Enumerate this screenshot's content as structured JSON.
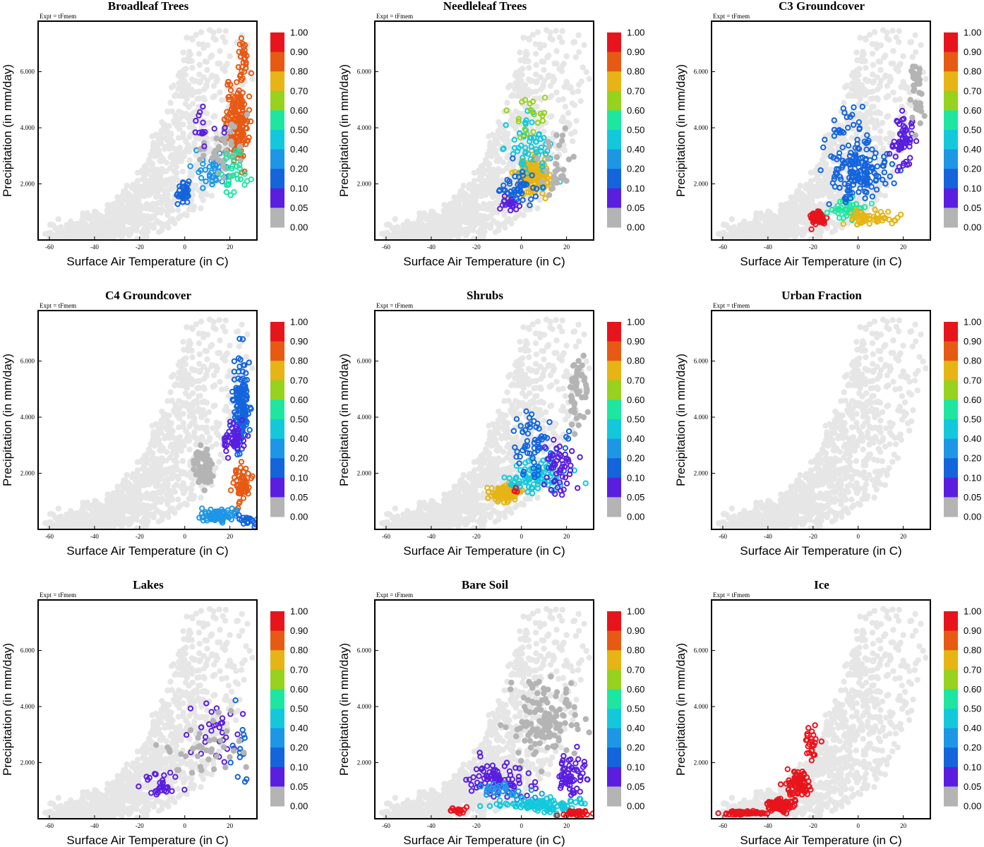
{
  "figure": {
    "expt_label": "Expt = tFmem",
    "colorbar": {
      "labels": [
        "1.00",
        "0.90",
        "0.80",
        "0.70",
        "0.60",
        "0.50",
        "0.40",
        "0.20",
        "0.10",
        "0.05",
        "0.00"
      ],
      "colors": [
        "#e8141c",
        "#e65a14",
        "#e6b414",
        "#96d21e",
        "#1ee6a0",
        "#14c8dc",
        "#1e96e6",
        "#1464dc",
        "#5a1ee0",
        "#b4b4b4"
      ]
    },
    "background_color": "#e6e6e6"
  },
  "chart_data": [
    {
      "type": "scatter",
      "title": "Broadleaf Trees",
      "xlabel": "Surface Air Temperature (in C)",
      "ylabel": "Precipitation (in mm/day)",
      "xlim": [
        -65,
        32
      ],
      "ylim": [
        0,
        7800
      ],
      "xticks": [
        -60,
        -40,
        -20,
        0,
        20
      ],
      "yticks": [
        2000,
        4000,
        6000
      ],
      "ytick_labels": [
        "2.000",
        "4.000",
        "6.000"
      ],
      "colorbar_levels": [
        0,
        0.05,
        0.1,
        0.2,
        0.4,
        0.5,
        0.6,
        0.7,
        0.8,
        0.9,
        1.0
      ],
      "clusters": [
        {
          "center": [
            23,
            4200
          ],
          "spread": [
            4,
            1200
          ],
          "n": 170,
          "value": 0.85
        },
        {
          "center": [
            26,
            6500
          ],
          "spread": [
            2,
            700
          ],
          "n": 25,
          "value": 0.82
        },
        {
          "center": [
            0,
            1700
          ],
          "spread": [
            3,
            300
          ],
          "n": 35,
          "value": 0.12
        },
        {
          "center": [
            12,
            2500
          ],
          "spread": [
            6,
            600
          ],
          "n": 40,
          "value": 0.2
        },
        {
          "center": [
            18,
            3200
          ],
          "spread": [
            8,
            900
          ],
          "n": 40,
          "value": 0.0
        },
        {
          "center": [
            22,
            2600
          ],
          "spread": [
            6,
            800
          ],
          "n": 30,
          "value": 0.55
        },
        {
          "center": [
            10,
            4000
          ],
          "spread": [
            8,
            600
          ],
          "n": 15,
          "value": 0.08
        }
      ]
    },
    {
      "type": "scatter",
      "title": "Needleleaf Trees",
      "xlabel": "Surface Air Temperature (in C)",
      "ylabel": "Precipitation (in mm/day)",
      "xlim": [
        -65,
        32
      ],
      "ylim": [
        0,
        7800
      ],
      "xticks": [
        -60,
        -40,
        -20,
        0,
        20
      ],
      "yticks": [
        2000,
        4000,
        6000
      ],
      "ytick_labels": [
        "2.000",
        "4.000",
        "6.000"
      ],
      "colorbar_levels": [
        0,
        0.05,
        0.1,
        0.2,
        0.4,
        0.5,
        0.6,
        0.7,
        0.8,
        0.9,
        1.0
      ],
      "clusters": [
        {
          "center": [
            5,
            2300
          ],
          "spread": [
            6,
            500
          ],
          "n": 150,
          "value": 0.72
        },
        {
          "center": [
            3,
            3200
          ],
          "spread": [
            8,
            900
          ],
          "n": 60,
          "value": 0.4
        },
        {
          "center": [
            -2,
            1800
          ],
          "spread": [
            7,
            500
          ],
          "n": 50,
          "value": 0.15
        },
        {
          "center": [
            5,
            4400
          ],
          "spread": [
            7,
            600
          ],
          "n": 20,
          "value": 0.6
        },
        {
          "center": [
            15,
            2800
          ],
          "spread": [
            6,
            900
          ],
          "n": 30,
          "value": 0.0
        },
        {
          "center": [
            -5,
            1300
          ],
          "spread": [
            4,
            200
          ],
          "n": 20,
          "value": 0.06
        }
      ]
    },
    {
      "type": "scatter",
      "title": "C3 Groundcover",
      "xlabel": "Surface Air Temperature (in C)",
      "ylabel": "Precipitation (in mm/day)",
      "xlim": [
        -65,
        32
      ],
      "ylim": [
        0,
        7800
      ],
      "xticks": [
        -60,
        -40,
        -20,
        0,
        20
      ],
      "yticks": [
        2000,
        4000,
        6000
      ],
      "ytick_labels": [
        "2.000",
        "4.000",
        "6.000"
      ],
      "colorbar_levels": [
        0,
        0.05,
        0.1,
        0.2,
        0.4,
        0.5,
        0.6,
        0.7,
        0.8,
        0.9,
        1.0
      ],
      "clusters": [
        {
          "center": [
            -18,
            800
          ],
          "spread": [
            3,
            200
          ],
          "n": 70,
          "value": 0.95
        },
        {
          "center": [
            -5,
            1100
          ],
          "spread": [
            6,
            300
          ],
          "n": 40,
          "value": 0.55
        },
        {
          "center": [
            0,
            2500
          ],
          "spread": [
            10,
            800
          ],
          "n": 160,
          "value": 0.15
        },
        {
          "center": [
            5,
            800
          ],
          "spread": [
            10,
            200
          ],
          "n": 50,
          "value": 0.7
        },
        {
          "center": [
            20,
            3500
          ],
          "spread": [
            4,
            900
          ],
          "n": 60,
          "value": 0.06
        },
        {
          "center": [
            26,
            5500
          ],
          "spread": [
            2,
            900
          ],
          "n": 40,
          "value": 0.0
        },
        {
          "center": [
            -5,
            4200
          ],
          "spread": [
            6,
            700
          ],
          "n": 20,
          "value": 0.12
        }
      ]
    },
    {
      "type": "scatter",
      "title": "C4 Groundcover",
      "xlabel": "Surface Air Temperature (in C)",
      "ylabel": "Precipitation (in mm/day)",
      "xlim": [
        -65,
        32
      ],
      "ylim": [
        0,
        7800
      ],
      "xticks": [
        -60,
        -40,
        -20,
        0,
        20
      ],
      "yticks": [
        2000,
        4000,
        6000
      ],
      "ytick_labels": [
        "2.000",
        "4.000",
        "6.000"
      ],
      "colorbar_levels": [
        0,
        0.05,
        0.1,
        0.2,
        0.4,
        0.5,
        0.6,
        0.7,
        0.8,
        0.9,
        1.0
      ],
      "clusters": [
        {
          "center": [
            25,
            4500
          ],
          "spread": [
            3,
            1300
          ],
          "n": 140,
          "value": 0.1
        },
        {
          "center": [
            25,
            1600
          ],
          "spread": [
            4,
            600
          ],
          "n": 60,
          "value": 0.85
        },
        {
          "center": [
            15,
            500
          ],
          "spread": [
            8,
            200
          ],
          "n": 80,
          "value": 0.35
        },
        {
          "center": [
            22,
            3200
          ],
          "spread": [
            4,
            500
          ],
          "n": 50,
          "value": 0.05
        },
        {
          "center": [
            8,
            2200
          ],
          "spread": [
            4,
            600
          ],
          "n": 60,
          "value": 0.0
        },
        {
          "center": [
            28,
            300
          ],
          "spread": [
            3,
            150
          ],
          "n": 20,
          "value": 0.12
        }
      ]
    },
    {
      "type": "scatter",
      "title": "Shrubs",
      "xlabel": "Surface Air Temperature (in C)",
      "ylabel": "Precipitation (in mm/day)",
      "xlim": [
        -65,
        32
      ],
      "ylim": [
        0,
        7800
      ],
      "xticks": [
        -60,
        -40,
        -20,
        0,
        20
      ],
      "yticks": [
        2000,
        4000,
        6000
      ],
      "ytick_labels": [
        "2.000",
        "4.000",
        "6.000"
      ],
      "colorbar_levels": [
        0,
        0.05,
        0.1,
        0.2,
        0.4,
        0.5,
        0.6,
        0.7,
        0.8,
        0.9,
        1.0
      ],
      "clusters": [
        {
          "center": [
            -8,
            1300
          ],
          "spread": [
            5,
            250
          ],
          "n": 110,
          "value": 0.72
        },
        {
          "center": [
            5,
            1800
          ],
          "spread": [
            10,
            500
          ],
          "n": 90,
          "value": 0.45
        },
        {
          "center": [
            8,
            3000
          ],
          "spread": [
            10,
            1000
          ],
          "n": 70,
          "value": 0.15
        },
        {
          "center": [
            18,
            2200
          ],
          "spread": [
            6,
            800
          ],
          "n": 50,
          "value": 0.05
        },
        {
          "center": [
            25,
            5000
          ],
          "spread": [
            3,
            1100
          ],
          "n": 50,
          "value": 0.0
        },
        {
          "center": [
            -3,
            1400
          ],
          "spread": [
            2,
            150
          ],
          "n": 4,
          "value": 0.92
        }
      ]
    },
    {
      "type": "scatter",
      "title": "Urban Fraction",
      "xlabel": "Surface Air Temperature (in C)",
      "ylabel": "Precipitation (in mm/day)",
      "xlim": [
        -65,
        32
      ],
      "ylim": [
        0,
        7800
      ],
      "xticks": [
        -60,
        -40,
        -20,
        0,
        20
      ],
      "yticks": [
        2000,
        4000,
        6000
      ],
      "ytick_labels": [
        "2.000",
        "4.000",
        "6.000"
      ],
      "colorbar_levels": [
        0,
        0.05,
        0.1,
        0.2,
        0.4,
        0.5,
        0.6,
        0.7,
        0.8,
        0.9,
        1.0
      ],
      "clusters": []
    },
    {
      "type": "scatter",
      "title": "Lakes",
      "xlabel": "Surface Air Temperature (in C)",
      "ylabel": "Precipitation (in mm/day)",
      "xlim": [
        -65,
        32
      ],
      "ylim": [
        0,
        7800
      ],
      "xticks": [
        -60,
        -40,
        -20,
        0,
        20
      ],
      "yticks": [
        2000,
        4000,
        6000
      ],
      "ytick_labels": [
        "2.000",
        "4.000",
        "6.000"
      ],
      "colorbar_levels": [
        0,
        0.05,
        0.1,
        0.2,
        0.4,
        0.5,
        0.6,
        0.7,
        0.8,
        0.9,
        1.0
      ],
      "clusters": [
        {
          "center": [
            -10,
            1200
          ],
          "spread": [
            7,
            400
          ],
          "n": 30,
          "value": 0.06
        },
        {
          "center": [
            12,
            3000
          ],
          "spread": [
            10,
            1000
          ],
          "n": 30,
          "value": 0.07
        },
        {
          "center": [
            25,
            2500
          ],
          "spread": [
            5,
            1200
          ],
          "n": 15,
          "value": 0.12
        },
        {
          "center": [
            10,
            2500
          ],
          "spread": [
            15,
            1200
          ],
          "n": 40,
          "value": 0.0
        }
      ]
    },
    {
      "type": "scatter",
      "title": "Bare Soil",
      "xlabel": "Surface Air Temperature (in C)",
      "ylabel": "Precipitation (in mm/day)",
      "xlim": [
        -65,
        32
      ],
      "ylim": [
        0,
        7800
      ],
      "xticks": [
        -60,
        -40,
        -20,
        0,
        20
      ],
      "yticks": [
        2000,
        4000,
        6000
      ],
      "ytick_labels": [
        "2.000",
        "4.000",
        "6.000"
      ],
      "colorbar_levels": [
        0,
        0.05,
        0.1,
        0.2,
        0.4,
        0.5,
        0.6,
        0.7,
        0.8,
        0.9,
        1.0
      ],
      "clusters": [
        {
          "center": [
            10,
            3500
          ],
          "spread": [
            12,
            1200
          ],
          "n": 130,
          "value": 0.0
        },
        {
          "center": [
            -10,
            1400
          ],
          "spread": [
            9,
            500
          ],
          "n": 90,
          "value": 0.06
        },
        {
          "center": [
            22,
            1500
          ],
          "spread": [
            6,
            600
          ],
          "n": 60,
          "value": 0.06
        },
        {
          "center": [
            10,
            500
          ],
          "spread": [
            15,
            200
          ],
          "n": 110,
          "value": 0.45
        },
        {
          "center": [
            -28,
            300
          ],
          "spread": [
            4,
            150
          ],
          "n": 15,
          "value": 0.95
        },
        {
          "center": [
            25,
            200
          ],
          "spread": [
            6,
            100
          ],
          "n": 30,
          "value": 0.9
        },
        {
          "center": [
            -5,
            1000
          ],
          "spread": [
            10,
            300
          ],
          "n": 30,
          "value": 0.2
        }
      ]
    },
    {
      "type": "scatter",
      "title": "Ice",
      "xlabel": "Surface Air Temperature (in C)",
      "ylabel": "Precipitation (in mm/day)",
      "xlim": [
        -65,
        32
      ],
      "ylim": [
        0,
        7800
      ],
      "xticks": [
        -60,
        -40,
        -20,
        0,
        20
      ],
      "yticks": [
        2000,
        4000,
        6000
      ],
      "ytick_labels": [
        "2.000",
        "4.000",
        "6.000"
      ],
      "colorbar_levels": [
        0,
        0.05,
        0.1,
        0.2,
        0.4,
        0.5,
        0.6,
        0.7,
        0.8,
        0.9,
        1.0
      ],
      "clusters": [
        {
          "center": [
            -50,
            200
          ],
          "spread": [
            8,
            60
          ],
          "n": 60,
          "value": 0.95
        },
        {
          "center": [
            -35,
            500
          ],
          "spread": [
            5,
            200
          ],
          "n": 80,
          "value": 0.95
        },
        {
          "center": [
            -27,
            1200
          ],
          "spread": [
            4,
            450
          ],
          "n": 80,
          "value": 0.95
        },
        {
          "center": [
            -20,
            2500
          ],
          "spread": [
            3,
            500
          ],
          "n": 25,
          "value": 0.95
        }
      ]
    }
  ]
}
